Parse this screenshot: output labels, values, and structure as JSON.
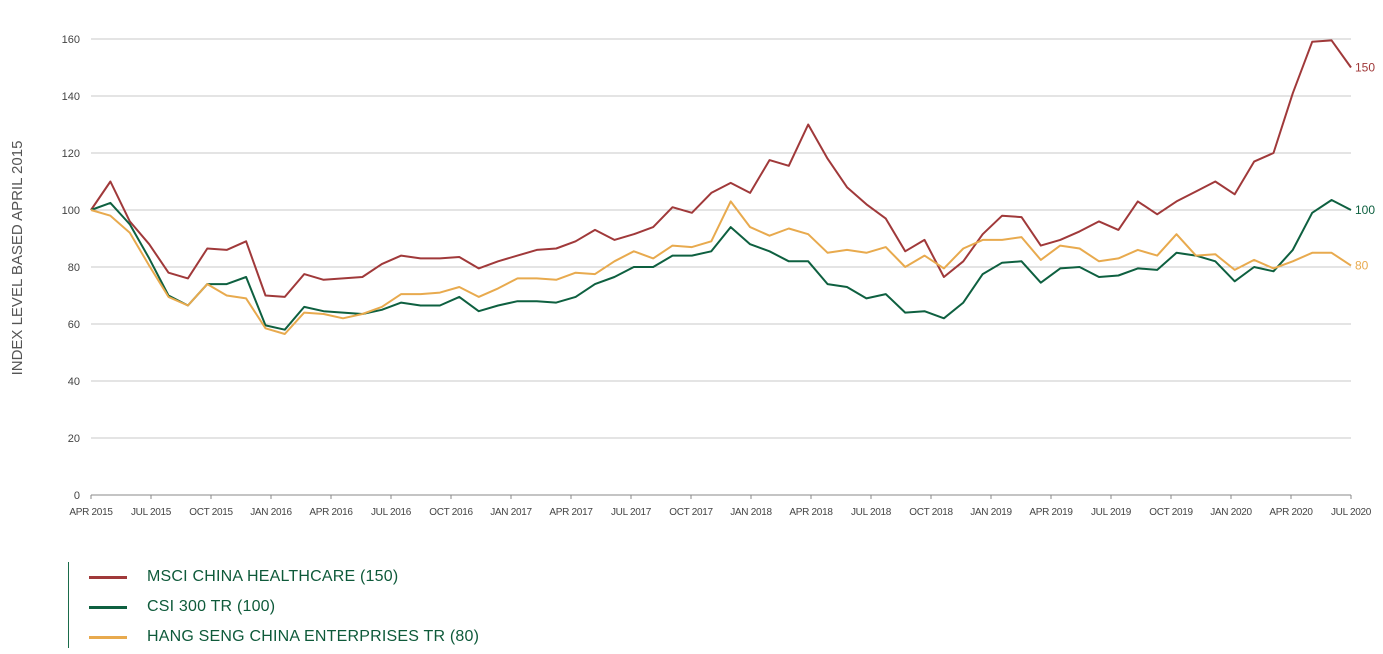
{
  "chart_data": {
    "type": "line",
    "ylabel": "INDEX LEVEL BASED APRIL 2015",
    "ylim": [
      0,
      165
    ],
    "yticks": [
      0,
      20,
      40,
      60,
      80,
      100,
      120,
      140,
      160
    ],
    "xticks": [
      "APR 2015",
      "JUL 2015",
      "OCT 2015",
      "JAN 2016",
      "APR 2016",
      "JUL 2016",
      "OCT 2016",
      "JAN 2017",
      "APR 2017",
      "JUL 2017",
      "OCT 2017",
      "JAN 2018",
      "APR 2018",
      "JUL 2018",
      "OCT 2018",
      "JAN 2019",
      "APR 2019",
      "JUL 2019",
      "OCT 2019",
      "JAN 2020",
      "APR 2020",
      "JUL 2020"
    ],
    "grid": true,
    "series": [
      {
        "name": "MSCI CHINA HEALTHCARE (150)",
        "end_label": "150",
        "color": "#a0393a",
        "values": [
          100,
          110,
          96,
          88,
          78,
          76,
          86.5,
          86,
          89,
          70,
          69.5,
          77.5,
          75.5,
          76,
          76.5,
          81,
          84,
          83,
          83,
          83.5,
          79.5,
          82,
          84,
          86,
          86.5,
          89,
          93,
          89.5,
          91.5,
          94,
          101,
          99,
          106,
          109.5,
          106,
          117.5,
          115.5,
          130,
          118,
          108,
          102,
          97,
          85.5,
          89.5,
          76.5,
          82,
          91.5,
          98,
          97.5,
          87.5,
          89.5,
          92.5,
          96,
          93,
          103,
          98.5,
          103,
          106.5,
          110,
          105.5,
          117,
          120,
          141,
          159,
          159.5,
          150
        ]
      },
      {
        "name": "CSI 300 TR (100)",
        "end_label": "100",
        "color": "#0e6040",
        "values": [
          100,
          102.5,
          95,
          83,
          70,
          66.5,
          74,
          74,
          76.5,
          59.5,
          58,
          66,
          64.5,
          64,
          63.5,
          65,
          67.5,
          66.5,
          66.5,
          69.5,
          64.5,
          66.5,
          68,
          68,
          67.5,
          69.5,
          74,
          76.5,
          80,
          80,
          84,
          84,
          85.5,
          94,
          88,
          85.5,
          82,
          82,
          74,
          73,
          69,
          70.5,
          64,
          64.5,
          62,
          67.5,
          77.5,
          81.5,
          82,
          74.5,
          79.5,
          80,
          76.5,
          77,
          79.5,
          79,
          85,
          84,
          82,
          75,
          80,
          78.5,
          86,
          99,
          103.5,
          100
        ]
      },
      {
        "name": "HANG SENG CHINA ENTERPRISES TR (80)",
        "end_label": "80",
        "color": "#e8aa4e",
        "values": [
          100,
          98,
          92,
          80.5,
          69.5,
          66.5,
          74,
          70,
          69,
          58.5,
          56.5,
          64,
          63.5,
          62,
          63.5,
          66,
          70.5,
          70.5,
          71,
          73,
          69.5,
          72.5,
          76,
          76,
          75.5,
          78,
          77.5,
          82,
          85.5,
          83,
          87.5,
          87,
          89,
          103,
          94,
          91,
          93.5,
          91.5,
          85,
          86,
          85,
          87,
          80,
          84,
          79.5,
          86.5,
          89.5,
          89.5,
          90.5,
          82.5,
          87.5,
          86.5,
          82,
          83,
          86,
          84,
          91.5,
          84,
          84.5,
          79,
          82.5,
          79.5,
          82,
          85,
          85,
          80.5
        ]
      }
    ]
  }
}
